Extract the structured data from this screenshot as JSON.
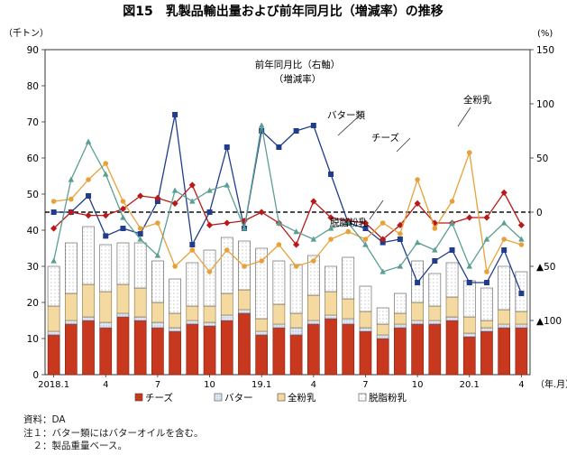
{
  "chart_data": {
    "type": "bar",
    "title": "図15　乳製品輸出量および前年同月比（増減率）の推移",
    "left_unit": "（千トン）",
    "right_unit": "(%)",
    "x_unit": "（年.月）",
    "left_ylim": [
      0,
      90
    ],
    "left_ticks": [
      0,
      10,
      20,
      30,
      40,
      50,
      60,
      70,
      80,
      90
    ],
    "right_ylim": [
      -150,
      150
    ],
    "right_ticks": [
      150,
      100,
      50,
      0,
      -50,
      -100
    ],
    "right_tick_labels": [
      "150",
      "100",
      "50",
      "0",
      "▲50",
      "▲100"
    ],
    "x_tick_labels": [
      {
        "index": 0,
        "label": "2018.1"
      },
      {
        "index": 3,
        "label": "4"
      },
      {
        "index": 6,
        "label": "7"
      },
      {
        "index": 9,
        "label": "10"
      },
      {
        "index": 12,
        "label": "19.1"
      },
      {
        "index": 15,
        "label": "4"
      },
      {
        "index": 18,
        "label": "7"
      },
      {
        "index": 21,
        "label": "10"
      },
      {
        "index": 24,
        "label": "20.1"
      },
      {
        "index": 27,
        "label": "4"
      }
    ],
    "months": [
      "2018.1",
      "2018.2",
      "2018.3",
      "2018.4",
      "2018.5",
      "2018.6",
      "2018.7",
      "2018.8",
      "2018.9",
      "2018.10",
      "2018.11",
      "2018.12",
      "2019.1",
      "2019.2",
      "2019.3",
      "2019.4",
      "2019.5",
      "2019.6",
      "2019.7",
      "2019.8",
      "2019.9",
      "2019.10",
      "2019.11",
      "2019.12",
      "2020.1",
      "2020.2",
      "2020.3",
      "2020.4"
    ],
    "bar_series": [
      {
        "name": "チーズ",
        "color": "#c8381e",
        "values": [
          11,
          14,
          15,
          13,
          16,
          15,
          13,
          12,
          14,
          13.5,
          15,
          17,
          11,
          13,
          11,
          14,
          15.5,
          14,
          12,
          10,
          13,
          14,
          14,
          15,
          10.5,
          12,
          13,
          13
        ]
      },
      {
        "name": "バター",
        "color": "#e4eaf5",
        "values": [
          1,
          1,
          1,
          1.5,
          1,
          1,
          1.5,
          1,
          1,
          1,
          1.5,
          1,
          1,
          1,
          2,
          1,
          1,
          1.5,
          1,
          1,
          1,
          1,
          1,
          1,
          1,
          1,
          1,
          1
        ]
      },
      {
        "name": "全粉乳",
        "color": "#f4d9a0",
        "values": [
          7,
          7.5,
          9,
          8.5,
          8,
          8,
          5.5,
          4,
          4,
          4.5,
          6,
          5.5,
          3.5,
          5.5,
          4,
          7,
          6.5,
          5.5,
          4.5,
          3,
          3,
          5,
          4,
          5.5,
          4.5,
          2,
          4,
          3.5
        ]
      },
      {
        "name": "脱脂粉乳",
        "color": "#ffffff",
        "values": [
          11,
          14,
          16,
          13,
          11.5,
          12.5,
          11.5,
          9.5,
          12,
          15.5,
          15.5,
          13.5,
          19.5,
          12,
          13.5,
          11,
          7,
          11.5,
          7,
          4.5,
          5.5,
          11.5,
          9,
          9.5,
          10,
          9,
          12,
          11
        ]
      }
    ],
    "line_series": [
      {
        "name": "バター類",
        "color": "#1f3d8a",
        "marker": "square",
        "values": [
          0,
          0,
          15,
          -22,
          -15,
          -20,
          10,
          90,
          -30,
          0,
          60,
          -15,
          75,
          60,
          75,
          80,
          35,
          -10,
          -15,
          -28,
          -25,
          -65,
          -45,
          -35,
          -65,
          -65,
          -35,
          -75
        ]
      },
      {
        "name": "チーズ",
        "color": "#b81a1a",
        "marker": "diamond",
        "values": [
          -15,
          0,
          -3,
          -3,
          3,
          15,
          13,
          8,
          25,
          -12,
          -10,
          -8,
          0,
          -10,
          -30,
          10,
          -5,
          -8,
          -10,
          -25,
          -12,
          8,
          -10,
          -10,
          -5,
          -5,
          18,
          -12
        ]
      },
      {
        "name": "全粉乳",
        "color": "#e8a13a",
        "marker": "circle",
        "values": [
          10,
          12,
          30,
          45,
          10,
          -15,
          -10,
          -50,
          -35,
          -55,
          -35,
          -50,
          -45,
          -30,
          -50,
          -45,
          -25,
          -18,
          -25,
          -10,
          -20,
          30,
          -15,
          10,
          55,
          -55,
          -25,
          -30
        ]
      },
      {
        "name": "脱脂粉乳",
        "color": "#5b9f94",
        "marker": "triangle",
        "values": [
          -45,
          30,
          65,
          35,
          -5,
          -25,
          -40,
          20,
          10,
          20,
          25,
          -15,
          80,
          -10,
          -18,
          -25,
          -15,
          -10,
          -30,
          -55,
          -50,
          -28,
          -35,
          -10,
          -50,
          -25,
          -10,
          -25
        ]
      }
    ],
    "line_labels": [
      {
        "series": "前年同月比（右軸）",
        "text": "前年同月比（右軸）"
      },
      {
        "series": "増減率",
        "text": "（増減率）"
      },
      {
        "series": "バター類",
        "text": "バター類"
      },
      {
        "series": "チーズ",
        "text": "チーズ"
      },
      {
        "series": "全粉乳",
        "text": "全粉乳"
      },
      {
        "series": "脱脂粉乳",
        "text": "脱脂粉乳"
      }
    ],
    "legend": [
      "チーズ",
      "バター",
      "全粉乳",
      "脱脂粉乳"
    ],
    "legend_position": "bottom"
  },
  "notes": [
    "資料：DA",
    "注１：バター類にはバターオイルを含む。",
    "　２：製品重量ベース。"
  ]
}
